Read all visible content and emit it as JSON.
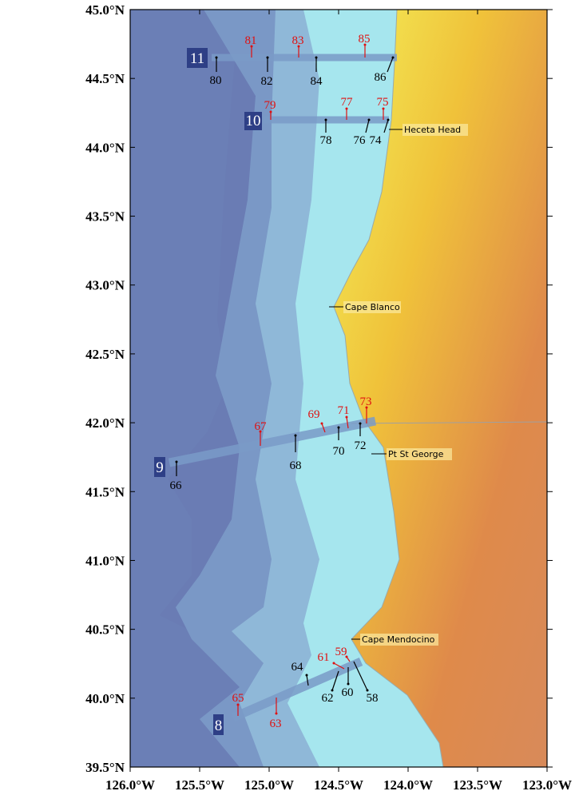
{
  "map": {
    "lat_ticks": [
      {
        "value": 45.0,
        "label": "45.0°N"
      },
      {
        "value": 44.5,
        "label": "44.5°N"
      },
      {
        "value": 44.0,
        "label": "44.0°N"
      },
      {
        "value": 43.5,
        "label": "43.5°N"
      },
      {
        "value": 43.0,
        "label": "43.0°N"
      },
      {
        "value": 42.5,
        "label": "42.5°N"
      },
      {
        "value": 42.0,
        "label": "42.0°N"
      },
      {
        "value": 41.5,
        "label": "41.5°N"
      },
      {
        "value": 41.0,
        "label": "41.0°N"
      },
      {
        "value": 40.5,
        "label": "40.5°N"
      },
      {
        "value": 40.0,
        "label": "40.0°N"
      },
      {
        "value": 39.5,
        "label": "39.5°N"
      }
    ],
    "lon_ticks": [
      {
        "value": -126.0,
        "label": "126.0°W"
      },
      {
        "value": -125.5,
        "label": "125.5°W"
      },
      {
        "value": -125.0,
        "label": "125.0°W"
      },
      {
        "value": -124.5,
        "label": "124.5°W"
      },
      {
        "value": -124.0,
        "label": "124.0°W"
      },
      {
        "value": -123.5,
        "label": "123.5°W"
      },
      {
        "value": -123.0,
        "label": "123.0°W"
      }
    ],
    "transects": [
      {
        "label": "11",
        "stations": [
          {
            "id": 80,
            "color": "#000000"
          },
          {
            "id": 81,
            "color": "#e01010"
          },
          {
            "id": 82,
            "color": "#000000"
          },
          {
            "id": 83,
            "color": "#e01010"
          },
          {
            "id": 84,
            "color": "#000000"
          },
          {
            "id": 85,
            "color": "#e01010"
          },
          {
            "id": 86,
            "color": "#000000"
          }
        ]
      },
      {
        "label": "10",
        "stations": [
          {
            "id": 79,
            "color": "#e01010"
          },
          {
            "id": 78,
            "color": "#000000"
          },
          {
            "id": 77,
            "color": "#e01010"
          },
          {
            "id": 76,
            "color": "#000000"
          },
          {
            "id": 75,
            "color": "#e01010"
          },
          {
            "id": 74,
            "color": "#000000"
          }
        ]
      },
      {
        "label": "9",
        "stations": [
          {
            "id": 66,
            "color": "#000000"
          },
          {
            "id": 67,
            "color": "#e01010"
          },
          {
            "id": 68,
            "color": "#000000"
          },
          {
            "id": 69,
            "color": "#e01010"
          },
          {
            "id": 70,
            "color": "#000000"
          },
          {
            "id": 71,
            "color": "#e01010"
          },
          {
            "id": 72,
            "color": "#000000"
          },
          {
            "id": 73,
            "color": "#e01010"
          }
        ]
      },
      {
        "label": "8",
        "stations": [
          {
            "id": 65,
            "color": "#e01010"
          },
          {
            "id": 64,
            "color": "#000000"
          },
          {
            "id": 63,
            "color": "#e01010"
          },
          {
            "id": 62,
            "color": "#000000"
          },
          {
            "id": 61,
            "color": "#e01010"
          },
          {
            "id": 60,
            "color": "#000000"
          },
          {
            "id": 59,
            "color": "#e01010"
          },
          {
            "id": 58,
            "color": "#000000"
          }
        ]
      }
    ],
    "places": [
      "Heceta Head",
      "Cape Blanco",
      "Pt St George",
      "Cape Mendocino"
    ]
  }
}
